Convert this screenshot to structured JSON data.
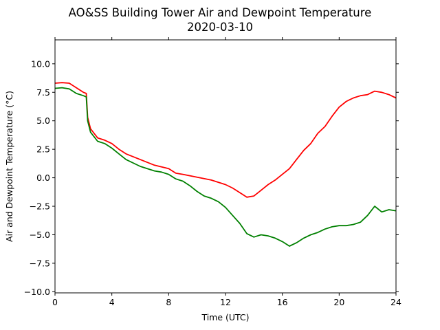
{
  "chart_data": {
    "type": "line",
    "title": "AO&SS Building Tower Air and Dewpoint Temperature",
    "subtitle": "2020-03-10",
    "xlabel": "Time (UTC)",
    "ylabel": "Air and Dewpoint Temperature (°C)",
    "xlim": [
      0,
      24
    ],
    "ylim": [
      -10.1,
      12.1
    ],
    "xticks": [
      0,
      4,
      8,
      12,
      16,
      20,
      24
    ],
    "yticks": [
      -10.0,
      -7.5,
      -5.0,
      -2.5,
      0.0,
      2.5,
      5.0,
      7.5,
      10.0
    ],
    "ytick_labels": [
      "−10.0",
      "−7.5",
      "−5.0",
      "−2.5",
      "0.0",
      "2.5",
      "5.0",
      "7.5",
      "10.0"
    ],
    "grid": false,
    "series": [
      {
        "color": "#ff0000",
        "x": [
          0,
          0.5,
          1,
          1.5,
          2,
          2.2,
          2.3,
          2.5,
          3,
          3.5,
          4,
          4.5,
          5,
          6,
          7,
          7.5,
          8,
          8.5,
          9,
          10,
          11,
          12,
          12.5,
          13,
          13.5,
          14,
          14.5,
          15,
          15.5,
          16,
          16.5,
          17,
          17.5,
          18,
          18.5,
          19,
          19.5,
          20,
          20.5,
          21,
          21.5,
          22,
          22.5,
          23,
          23.5,
          24
        ],
        "y": [
          8.3,
          8.35,
          8.3,
          7.9,
          7.5,
          7.4,
          5.3,
          4.3,
          3.5,
          3.3,
          3.0,
          2.5,
          2.1,
          1.6,
          1.1,
          0.95,
          0.8,
          0.4,
          0.3,
          0.05,
          -0.2,
          -0.6,
          -0.9,
          -1.3,
          -1.7,
          -1.6,
          -1.1,
          -0.6,
          -0.2,
          0.3,
          0.8,
          1.6,
          2.4,
          3.0,
          3.9,
          4.5,
          5.4,
          6.2,
          6.7,
          7.0,
          7.2,
          7.3,
          7.6,
          7.5,
          7.3,
          7.0
        ]
      },
      {
        "color": "#008000",
        "x": [
          0,
          0.5,
          1,
          1.5,
          2,
          2.2,
          2.3,
          2.5,
          3,
          3.5,
          4,
          4.5,
          5,
          6,
          7,
          7.5,
          8,
          8.5,
          9,
          9.5,
          10,
          10.5,
          11,
          11.5,
          12,
          12.5,
          13,
          13.5,
          14,
          14.5,
          15,
          15.5,
          16,
          16.5,
          17,
          17.5,
          18,
          18.5,
          19,
          19.5,
          20,
          20.5,
          21,
          21.5,
          22,
          22.5,
          23,
          23.5,
          24
        ],
        "y": [
          7.85,
          7.9,
          7.8,
          7.4,
          7.2,
          7.1,
          5.0,
          4.0,
          3.2,
          3.0,
          2.6,
          2.1,
          1.6,
          1.0,
          0.6,
          0.5,
          0.3,
          -0.1,
          -0.3,
          -0.7,
          -1.2,
          -1.6,
          -1.8,
          -2.1,
          -2.6,
          -3.3,
          -4.0,
          -4.9,
          -5.2,
          -5.0,
          -5.1,
          -5.3,
          -5.6,
          -6.0,
          -5.7,
          -5.3,
          -5.0,
          -4.8,
          -4.5,
          -4.3,
          -4.2,
          -4.2,
          -4.1,
          -3.9,
          -3.3,
          -2.5,
          -3.0,
          -2.8,
          -2.9
        ]
      }
    ]
  }
}
